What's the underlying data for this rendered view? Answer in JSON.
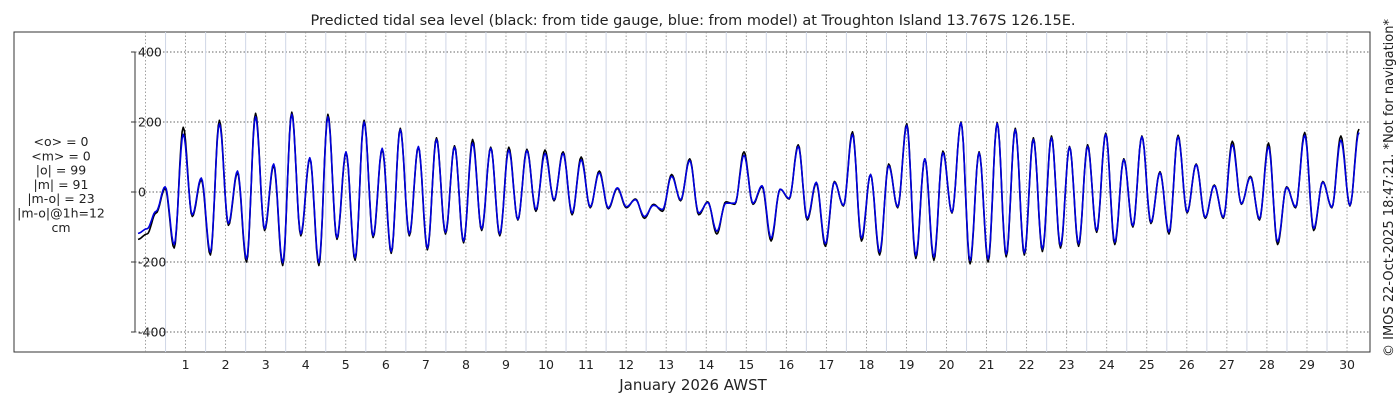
{
  "chart_data": {
    "type": "line",
    "title": "Predicted tidal sea level (black: from tide gauge, blue: from model) at Troughton Island 13.767S 126.15E.",
    "xlabel": "January 2026 AWST",
    "ylabel": "",
    "ylim": [
      -400,
      400
    ],
    "yticks": [
      400,
      200,
      0,
      -200,
      -400
    ],
    "xticks": [
      "1",
      "2",
      "3",
      "4",
      "5",
      "6",
      "7",
      "8",
      "9",
      "10",
      "11",
      "12",
      "13",
      "14",
      "15",
      "16",
      "17",
      "18",
      "19",
      "20",
      "21",
      "22",
      "23",
      "24",
      "25",
      "26",
      "27",
      "28",
      "29",
      "30"
    ],
    "xlim_days": [
      0.0,
      31.0
    ],
    "grid": true,
    "units": "cm",
    "stats": [
      "<o> = 0",
      "<m> = 0",
      "|o| = 99",
      "|m| = 91",
      "|m-o| = 23",
      "|m-o|@1h=12",
      "cm"
    ],
    "side_note": "© IMOS 22-Oct-2025 18:47:21. *Not for navigation*",
    "series": [
      {
        "name": "tide gauge",
        "color": "#000000",
        "highs": [
          -120,
          10,
          185,
          35,
          205,
          55,
          225,
          75,
          228,
          95,
          222,
          112,
          205,
          122,
          182,
          128,
          155,
          132,
          150,
          128,
          128,
          122,
          120,
          115,
          100,
          60,
          10,
          -20,
          -35,
          50,
          95,
          -28,
          -28,
          115,
          15,
          8,
          135,
          25,
          30,
          172,
          50,
          80,
          195,
          95,
          117,
          200,
          115,
          198,
          182,
          155,
          160,
          130,
          135,
          168,
          95,
          160,
          58,
          162,
          80,
          20,
          145,
          45,
          140,
          15,
          170,
          30,
          160,
          180
        ],
        "lows": [
          -135,
          -60,
          -160,
          -70,
          -180,
          -95,
          -200,
          -110,
          -210,
          -125,
          -210,
          -135,
          -195,
          -130,
          -175,
          -125,
          -165,
          -120,
          -145,
          -110,
          -125,
          -80,
          -55,
          -25,
          -65,
          -45,
          -48,
          -45,
          -75,
          -55,
          -25,
          -65,
          -120,
          -35,
          -35,
          -140,
          -20,
          -80,
          -155,
          -40,
          -140,
          -180,
          -45,
          -190,
          -195,
          -60,
          -205,
          -200,
          -185,
          -180,
          -170,
          -160,
          -155,
          -115,
          -150,
          -100,
          -90,
          -120,
          -60,
          -75,
          -75,
          -35,
          -80,
          -150,
          -45,
          -110,
          -45,
          -40
        ]
      },
      {
        "name": "model",
        "color": "#0000dd",
        "highs": [
          -105,
          15,
          165,
          40,
          195,
          60,
          215,
          80,
          222,
          98,
          215,
          115,
          200,
          125,
          178,
          130,
          150,
          128,
          140,
          125,
          120,
          118,
          110,
          110,
          92,
          55,
          12,
          -22,
          -38,
          45,
          90,
          -30,
          -32,
          105,
          18,
          8,
          130,
          28,
          28,
          165,
          50,
          75,
          190,
          95,
          112,
          198,
          112,
          196,
          178,
          150,
          155,
          128,
          130,
          165,
          92,
          158,
          55,
          158,
          78,
          18,
          135,
          42,
          130,
          13,
          162,
          28,
          148,
          170
        ],
        "lows": [
          -118,
          -55,
          -150,
          -65,
          -172,
          -90,
          -192,
          -105,
          -202,
          -120,
          -202,
          -130,
          -188,
          -125,
          -170,
          -120,
          -160,
          -115,
          -140,
          -105,
          -120,
          -78,
          -50,
          -22,
          -60,
          -42,
          -45,
          -42,
          -70,
          -50,
          -22,
          -60,
          -112,
          -32,
          -32,
          -132,
          -18,
          -75,
          -148,
          -38,
          -132,
          -172,
          -42,
          -182,
          -186,
          -58,
          -196,
          -192,
          -178,
          -174,
          -163,
          -153,
          -148,
          -110,
          -143,
          -96,
          -86,
          -114,
          -57,
          -72,
          -72,
          -33,
          -76,
          -142,
          -42,
          -104,
          -43,
          -38
        ]
      }
    ]
  }
}
